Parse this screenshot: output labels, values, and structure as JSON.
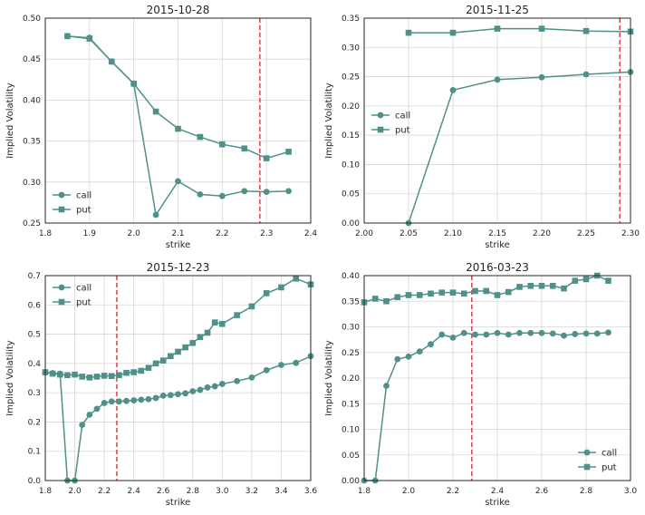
{
  "colors": {
    "series": "#4f9188",
    "vline": "#d1414b",
    "grid": "#d6d6d6",
    "axes": "#262626"
  },
  "chart_data": [
    {
      "type": "line",
      "title": "2015-10-28",
      "xlabel": "strike",
      "ylabel": "Implied Volatility",
      "xlim": [
        1.8,
        2.4
      ],
      "ylim": [
        0.25,
        0.5
      ],
      "xticks": [
        "1.8",
        "1.9",
        "2.0",
        "2.1",
        "2.2",
        "2.3",
        "2.4"
      ],
      "yticks": [
        "0.25",
        "0.30",
        "0.35",
        "0.40",
        "0.45",
        "0.50"
      ],
      "vline": 2.285,
      "legend": "lower-left",
      "grid": true,
      "series": [
        {
          "name": "call",
          "marker": "circle",
          "x": [
            1.85,
            1.9,
            1.95,
            2.0,
            2.05,
            2.1,
            2.15,
            2.2,
            2.25,
            2.3,
            2.35
          ],
          "y": [
            0.478,
            0.476,
            0.447,
            0.42,
            0.26,
            0.301,
            0.285,
            0.283,
            0.289,
            0.288,
            0.289
          ]
        },
        {
          "name": "put",
          "marker": "square",
          "x": [
            1.85,
            1.9,
            1.95,
            2.0,
            2.05,
            2.1,
            2.15,
            2.2,
            2.25,
            2.3,
            2.35
          ],
          "y": [
            0.478,
            0.475,
            0.447,
            0.42,
            0.386,
            0.365,
            0.355,
            0.346,
            0.341,
            0.329,
            0.337
          ]
        }
      ]
    },
    {
      "type": "line",
      "title": "2015-11-25",
      "xlabel": "strike",
      "ylabel": "Implied Volatility",
      "xlim": [
        2.0,
        2.3
      ],
      "ylim": [
        0.0,
        0.35
      ],
      "xticks": [
        "2.00",
        "2.05",
        "2.10",
        "2.15",
        "2.20",
        "2.25",
        "2.30"
      ],
      "yticks": [
        "0.00",
        "0.05",
        "0.10",
        "0.15",
        "0.20",
        "0.25",
        "0.30",
        "0.35"
      ],
      "vline": 2.288,
      "legend": "center-left",
      "grid": true,
      "series": [
        {
          "name": "call",
          "marker": "circle",
          "x": [
            2.05,
            2.1,
            2.15,
            2.2,
            2.25,
            2.3
          ],
          "y": [
            0.0,
            0.227,
            0.245,
            0.249,
            0.254,
            0.258
          ]
        },
        {
          "name": "put",
          "marker": "square",
          "x": [
            2.05,
            2.1,
            2.15,
            2.2,
            2.25,
            2.3
          ],
          "y": [
            0.325,
            0.325,
            0.332,
            0.332,
            0.328,
            0.327
          ]
        }
      ]
    },
    {
      "type": "line",
      "title": "2015-12-23",
      "xlabel": "strike",
      "ylabel": "Implied Volatility",
      "xlim": [
        1.8,
        3.6
      ],
      "ylim": [
        0.0,
        0.7
      ],
      "xticks": [
        "1.8",
        "2.0",
        "2.2",
        "2.4",
        "2.6",
        "2.8",
        "3.0",
        "3.2",
        "3.4",
        "3.6"
      ],
      "yticks": [
        "0.0",
        "0.1",
        "0.2",
        "0.3",
        "0.4",
        "0.5",
        "0.6",
        "0.7"
      ],
      "vline": 2.285,
      "legend": "top-left",
      "grid": true,
      "series": [
        {
          "name": "call",
          "marker": "circle",
          "x": [
            1.8,
            1.85,
            1.9,
            1.95,
            2.0,
            2.05,
            2.1,
            2.15,
            2.2,
            2.25,
            2.3,
            2.35,
            2.4,
            2.45,
            2.5,
            2.55,
            2.6,
            2.65,
            2.7,
            2.75,
            2.8,
            2.85,
            2.9,
            2.95,
            3.0,
            3.1,
            3.2,
            3.3,
            3.4,
            3.5,
            3.6
          ],
          "y": [
            0.37,
            0.367,
            0.365,
            0.0,
            0.0,
            0.19,
            0.225,
            0.245,
            0.265,
            0.27,
            0.27,
            0.272,
            0.274,
            0.276,
            0.278,
            0.282,
            0.29,
            0.292,
            0.295,
            0.298,
            0.305,
            0.31,
            0.318,
            0.322,
            0.33,
            0.34,
            0.352,
            0.377,
            0.395,
            0.402,
            0.425
          ]
        },
        {
          "name": "put",
          "marker": "square",
          "x": [
            1.8,
            1.85,
            1.9,
            1.95,
            2.0,
            2.05,
            2.1,
            2.15,
            2.2,
            2.25,
            2.3,
            2.35,
            2.4,
            2.45,
            2.5,
            2.55,
            2.6,
            2.65,
            2.7,
            2.75,
            2.8,
            2.85,
            2.9,
            2.95,
            3.0,
            3.1,
            3.2,
            3.3,
            3.4,
            3.5,
            3.6
          ],
          "y": [
            0.37,
            0.365,
            0.362,
            0.36,
            0.362,
            0.355,
            0.352,
            0.355,
            0.358,
            0.357,
            0.36,
            0.368,
            0.37,
            0.375,
            0.385,
            0.4,
            0.41,
            0.425,
            0.44,
            0.455,
            0.47,
            0.49,
            0.505,
            0.54,
            0.535,
            0.565,
            0.595,
            0.64,
            0.66,
            0.69,
            0.67
          ]
        }
      ]
    },
    {
      "type": "line",
      "title": "2016-03-23",
      "xlabel": "strike",
      "ylabel": "Implied Volatility",
      "xlim": [
        1.8,
        3.0
      ],
      "ylim": [
        0.0,
        0.4
      ],
      "xticks": [
        "1.8",
        "2.0",
        "2.2",
        "2.4",
        "2.6",
        "2.8",
        "3.0"
      ],
      "yticks": [
        "0.00",
        "0.05",
        "0.10",
        "0.15",
        "0.20",
        "0.25",
        "0.30",
        "0.35",
        "0.40"
      ],
      "vline": 2.285,
      "legend": "lower-right",
      "grid": true,
      "series": [
        {
          "name": "call",
          "marker": "circle",
          "x": [
            1.8,
            1.85,
            1.9,
            1.95,
            2.0,
            2.05,
            2.1,
            2.15,
            2.2,
            2.25,
            2.3,
            2.35,
            2.4,
            2.45,
            2.5,
            2.55,
            2.6,
            2.65,
            2.7,
            2.75,
            2.8,
            2.85,
            2.9
          ],
          "y": [
            0.0,
            0.0,
            0.185,
            0.237,
            0.242,
            0.252,
            0.266,
            0.285,
            0.279,
            0.288,
            0.285,
            0.285,
            0.288,
            0.285,
            0.288,
            0.288,
            0.288,
            0.287,
            0.283,
            0.286,
            0.287,
            0.287,
            0.289
          ]
        },
        {
          "name": "put",
          "marker": "square",
          "x": [
            1.8,
            1.85,
            1.9,
            1.95,
            2.0,
            2.05,
            2.1,
            2.15,
            2.2,
            2.25,
            2.3,
            2.35,
            2.4,
            2.45,
            2.5,
            2.55,
            2.6,
            2.65,
            2.7,
            2.75,
            2.8,
            2.85,
            2.9
          ],
          "y": [
            0.348,
            0.355,
            0.35,
            0.358,
            0.362,
            0.362,
            0.365,
            0.367,
            0.367,
            0.365,
            0.37,
            0.37,
            0.362,
            0.368,
            0.378,
            0.38,
            0.38,
            0.38,
            0.375,
            0.39,
            0.393,
            0.4,
            0.39
          ]
        }
      ]
    }
  ]
}
